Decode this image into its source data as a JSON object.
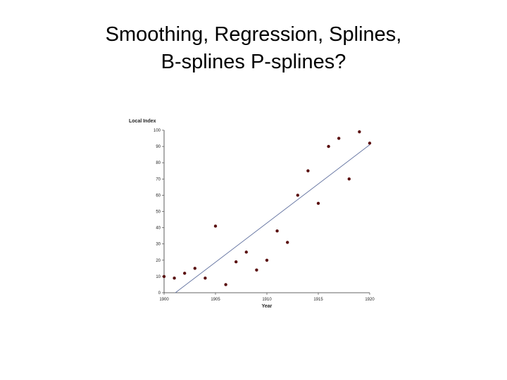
{
  "slide": {
    "title_line1": "Smoothing, Regression, Splines,",
    "title_line2": "B-splines  P-splines?"
  },
  "colors": {
    "point": "#5a0f0f",
    "fit_line": "#5f6f9e",
    "axis": "#333333"
  },
  "chart_data": {
    "type": "scatter",
    "ylabel": "Local Index",
    "xlabel": "Year",
    "xlim": [
      1900,
      1920
    ],
    "ylim": [
      0,
      100
    ],
    "x_ticks": [
      1900,
      1905,
      1910,
      1915,
      1920
    ],
    "y_ticks": [
      0,
      10,
      20,
      30,
      40,
      50,
      60,
      70,
      80,
      90,
      100
    ],
    "grid": false,
    "legend": "none",
    "series": [
      {
        "x": [
          1900,
          1901,
          1902,
          1903,
          1904,
          1905,
          1906,
          1907,
          1908,
          1909,
          1910,
          1911,
          1912,
          1913,
          1914,
          1915,
          1916,
          1917,
          1918,
          1919,
          1920
        ],
        "y": [
          10,
          9,
          12,
          15,
          9,
          41,
          5,
          19,
          25,
          14,
          20,
          38,
          31,
          60,
          75,
          55,
          90,
          95,
          70,
          99,
          92
        ]
      }
    ],
    "fit_line": {
      "x": [
        1901.1,
        1920
      ],
      "y": [
        0,
        91
      ]
    }
  }
}
